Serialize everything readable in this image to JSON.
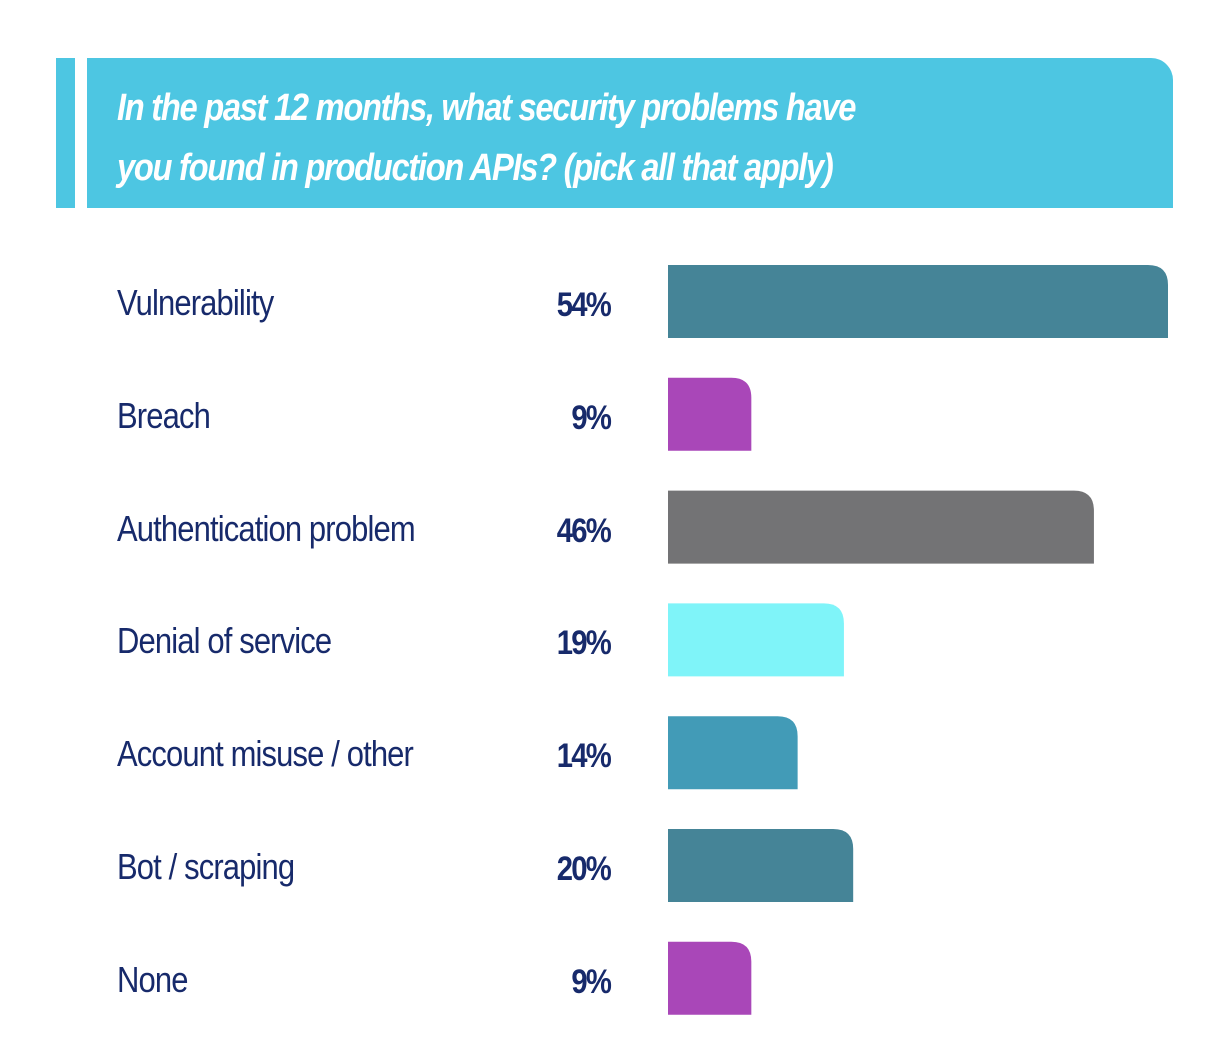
{
  "header": {
    "title_line1": "In the past 12 months, what security problems have",
    "title_line2": "you found in production APIs? (pick all that apply)"
  },
  "colors": {
    "header_bg": "#4dc6e2",
    "text": "#172a6b"
  },
  "chart_data": {
    "type": "bar",
    "orientation": "horizontal",
    "title": "In the past 12 months, what security problems have you found in production APIs? (pick all that apply)",
    "xlabel": "",
    "ylabel": "",
    "grid": false,
    "categories": [
      "Vulnerability",
      "Breach",
      "Authentication problem",
      "Denial of service",
      "Account misuse / other",
      "Bot / scraping",
      "None"
    ],
    "values": [
      54,
      9,
      46,
      19,
      14,
      20,
      9
    ],
    "value_labels": [
      "54%",
      "9%",
      "46%",
      "19%",
      "14%",
      "20%",
      "9%"
    ],
    "bar_colors": [
      "#458497",
      "#a947b8",
      "#737375",
      "#7ff4f9",
      "#429bb7",
      "#458497",
      "#a947b8"
    ],
    "unit": "%"
  }
}
